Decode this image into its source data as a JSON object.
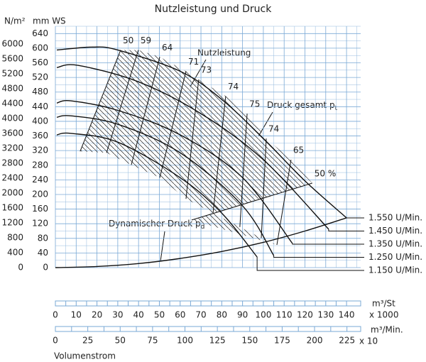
{
  "chart_data": {
    "type": "line",
    "title": "Nutzleistung und Druck",
    "ylabel": "mm WS",
    "y2label": "N/m²",
    "xlabel": "Volumenstrom",
    "x_unit": "m³/St",
    "x_multiplier": "x 1000",
    "x2_unit": "m³/Min.",
    "x2_multiplier": "x 10",
    "xlim": [
      0,
      146.8
    ],
    "xticks": [
      0,
      10,
      20,
      30,
      40,
      50,
      60,
      70,
      80,
      90,
      100,
      110,
      120,
      130,
      140
    ],
    "x2lim": [
      0,
      235.6
    ],
    "x2ticks": [
      0,
      25,
      50,
      75,
      100,
      125,
      150,
      175,
      200,
      225
    ],
    "ylim": [
      0,
      660
    ],
    "yticks": [
      0,
      40,
      80,
      120,
      160,
      200,
      240,
      280,
      320,
      360,
      400,
      440,
      480,
      520,
      560,
      600,
      640
    ],
    "y2lim": [
      0,
      6475
    ],
    "y2ticks": [
      0,
      400,
      800,
      1200,
      1600,
      2000,
      2400,
      2800,
      3200,
      3600,
      4000,
      4400,
      4800,
      5200,
      5600,
      6000
    ],
    "grid": true,
    "grid_color": "#7aa9d6",
    "series": [
      {
        "name": "1.550 U/Min.",
        "color": "#111111",
        "x": [
          0.7,
          17.7,
          30,
          60,
          80,
          100,
          120,
          140
        ],
        "values": [
          595,
          603,
          595,
          537,
          460,
          353,
          237,
          136
        ]
      },
      {
        "name": "1.450 U/Min.",
        "color": "#111111",
        "x": [
          0.7,
          10.9,
          40,
          70,
          100,
          131.4
        ],
        "values": [
          547,
          553,
          508,
          421,
          295,
          105
        ]
      },
      {
        "name": "1.350 U/Min.",
        "color": "#111111",
        "x": [
          0.7,
          7.5,
          30,
          60,
          90,
          114
        ],
        "values": [
          450,
          456,
          430,
          363,
          246,
          66
        ]
      },
      {
        "name": "1.250 U/Min.",
        "color": "#111111",
        "x": [
          0.7,
          7.5,
          30,
          60,
          90,
          105
        ],
        "values": [
          411,
          415,
          392,
          314,
          169,
          33
        ]
      },
      {
        "name": "1.150 U/Min.",
        "color": "#111111",
        "x": [
          0.7,
          7.5,
          30,
          60,
          80,
          97
        ],
        "values": [
          363,
          367,
          343,
          246,
          149,
          29
        ]
      }
    ],
    "dynamic_pressure": {
      "x": [
        0,
        20,
        40,
        60,
        80,
        100,
        120,
        140
      ],
      "values": [
        0,
        3,
        11,
        25,
        44,
        69,
        100,
        136
      ]
    },
    "efficiency": [
      {
        "value": 50,
        "x": [
          11.9,
          31.4
        ],
        "values": [
          318,
          595
        ]
      },
      {
        "value": 59,
        "x": [
          24.6,
          39.9
        ],
        "values": [
          314,
          595
        ]
      },
      {
        "value": 64,
        "x": [
          36.5,
          50.2
        ],
        "values": [
          281,
          576
        ]
      },
      {
        "value": 71,
        "x": [
          50.2,
          62.8
        ],
        "values": [
          246,
          537
        ]
      },
      {
        "value": 73,
        "x": [
          62.8,
          68.9
        ],
        "values": [
          188,
          514
        ]
      },
      {
        "value": 74,
        "x": [
          75.8,
          81.9
        ],
        "values": [
          149,
          469
        ]
      },
      {
        "value": 75,
        "x": [
          88.7,
          92.2
        ],
        "values": [
          111,
          421
        ]
      },
      {
        "value": 74,
        "x": [
          99,
          101.4
        ],
        "values": [
          81,
          353
        ]
      },
      {
        "value": 65,
        "x": [
          106.5,
          113.3
        ],
        "values": [
          62,
          295
        ]
      },
      {
        "value": 50,
        "label": "50 %",
        "x": [
          65.5,
          123.5
        ],
        "values": [
          130,
          231
        ]
      }
    ],
    "annotations": {
      "power": "Nutzleistung",
      "total_pressure": {
        "text": "Druck gesamt p",
        "sub": "t"
      },
      "dynamic_pressure": {
        "text": "Dynamischer Druck p",
        "sub": "d"
      }
    }
  }
}
